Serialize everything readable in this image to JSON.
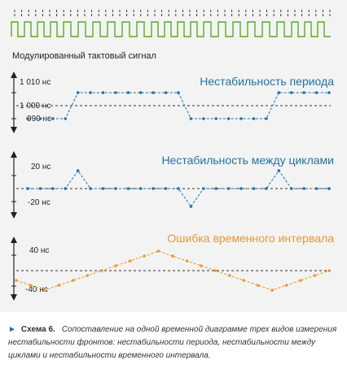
{
  "clock_label": "Модулированный тактовый сигнал",
  "panels": {
    "period": {
      "title": "Нестабильность периода",
      "tick_labels": [
        "1 010 нс",
        "1 000 нс",
        "990 нс"
      ],
      "values": [
        990,
        990,
        990,
        990,
        1010,
        1010,
        1010,
        1010,
        1010,
        1010,
        1010,
        1010,
        1010,
        990,
        990,
        990,
        990,
        990,
        990,
        990,
        1010,
        1010,
        1010,
        1010,
        1010
      ],
      "colors": {
        "title": "#1f73a8",
        "series": "#1f73a8"
      }
    },
    "cycle": {
      "title": "Нестабильность между циклами",
      "tick_labels": [
        "20 нс",
        "-20 нс"
      ],
      "values": [
        0,
        0,
        0,
        0,
        20,
        0,
        0,
        0,
        0,
        0,
        0,
        0,
        0,
        -20,
        0,
        0,
        0,
        0,
        0,
        0,
        20,
        0,
        0,
        0,
        0
      ],
      "colors": {
        "title": "#1f73a8",
        "series": "#1f73a8"
      }
    },
    "tie": {
      "title": "Ошибка временного интервала",
      "tick_labels": [
        "40 нс",
        "-40 нс"
      ],
      "values": [
        -20,
        -30,
        -40,
        -30,
        -20,
        -10,
        0,
        10,
        20,
        30,
        40,
        30,
        20,
        10,
        0,
        -10,
        -20,
        -30,
        -40,
        -30,
        -20,
        -10,
        0
      ],
      "colors": {
        "title": "#f0962f",
        "series": "#f0962f"
      }
    }
  },
  "caption": {
    "figure": "Схема 6.",
    "text": "Сопоставление на одной временной диаграмме трех видов измерения нестабильности фронтов: нестабильности периода, нестабильности между циклами и нестабильности временного интервала."
  },
  "colors": {
    "clock": "#5aaa28",
    "axis": "#222222",
    "dashed": "#333333",
    "panel_bg": "#f3f3f3",
    "accent": "#1f6f9f"
  }
}
